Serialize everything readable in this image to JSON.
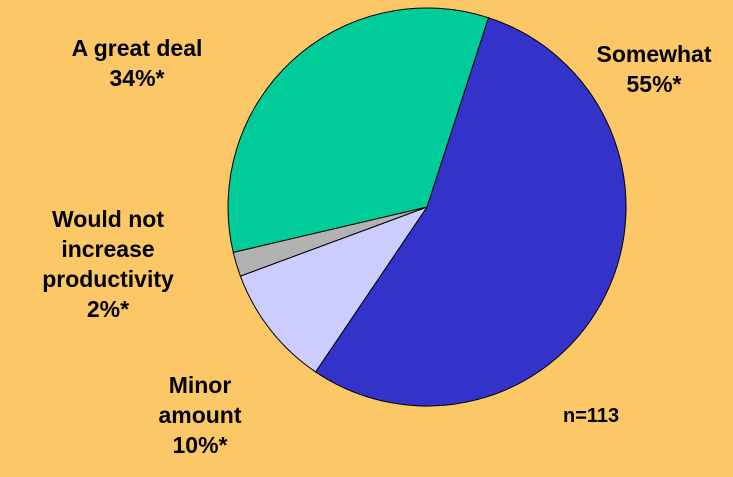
{
  "chart_data": {
    "type": "pie",
    "slices": [
      {
        "label_lines": [
          "Somewhat",
          "55%*"
        ],
        "value": 55,
        "color": "#3333CC"
      },
      {
        "label_lines": [
          "Minor",
          "amount",
          "10%*"
        ],
        "value": 10,
        "color": "#CCCCFF"
      },
      {
        "label_lines": [
          "Would not",
          "increase",
          "productivity",
          "2%*"
        ],
        "value": 2,
        "color": "#B2B2B2"
      },
      {
        "label_lines": [
          "A great deal",
          "34%*"
        ],
        "value": 34,
        "color": "#00CC99"
      }
    ],
    "start_angle_deg": 18,
    "direction": "clockwise",
    "annotation": "n=113"
  },
  "colors": {
    "background": "#FCC766",
    "slice_edge": "#000000"
  }
}
